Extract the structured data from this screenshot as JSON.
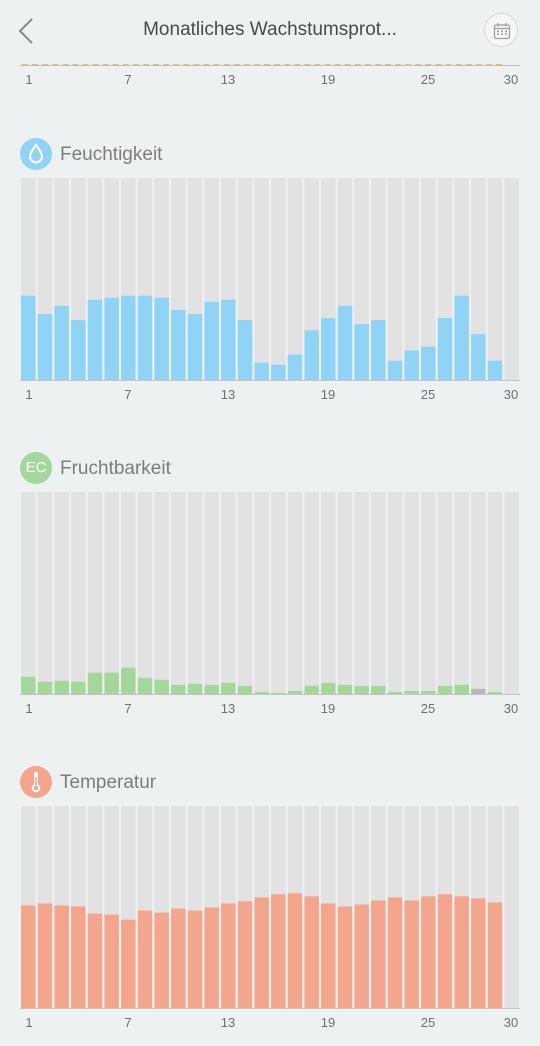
{
  "header": {
    "title": "Monatliches Wachstumsprot...",
    "back_icon": "chevron-left-icon",
    "calendar_icon": "calendar-icon"
  },
  "axis": {
    "ticks": [
      "1",
      "7",
      "13",
      "19",
      "25",
      "30"
    ]
  },
  "sections": [
    {
      "label": "Feuchtigkeit",
      "icon": "water-drop-icon",
      "icon_text": "",
      "color": "#8fd3f7"
    },
    {
      "label": "Fruchtbarkeit",
      "icon": "ec-icon",
      "icon_text": "EC",
      "color": "#a4d79a"
    },
    {
      "label": "Temperatur",
      "icon": "thermometer-icon",
      "icon_text": "",
      "color": "#f3a68c"
    }
  ],
  "chart_data": [
    {
      "type": "bar",
      "categories": [
        "1",
        "2",
        "3",
        "4",
        "5",
        "6",
        "7",
        "8",
        "9",
        "10",
        "11",
        "12",
        "13",
        "14",
        "15",
        "16",
        "17",
        "18",
        "19",
        "20",
        "21",
        "22",
        "23",
        "24",
        "25",
        "26",
        "27",
        "28",
        "29",
        "30"
      ],
      "values": [
        42,
        33,
        37,
        30,
        40,
        41,
        42,
        42,
        41,
        35,
        33,
        39,
        40,
        30,
        9,
        8,
        13,
        25,
        31,
        37,
        28,
        30,
        10,
        15,
        17,
        31,
        42,
        23,
        10,
        null
      ],
      "ylim": [
        0,
        100
      ],
      "bar_color": "#8fd3f7",
      "empty_color": "#e2e2e2"
    },
    {
      "type": "bar",
      "categories": [
        "1",
        "2",
        "3",
        "4",
        "5",
        "6",
        "7",
        "8",
        "9",
        "10",
        "11",
        "12",
        "13",
        "14",
        "15",
        "16",
        "17",
        "18",
        "19",
        "20",
        "21",
        "22",
        "23",
        "24",
        "25",
        "26",
        "27",
        "28",
        "29",
        "30"
      ],
      "values": [
        9,
        6.5,
        7,
        6.5,
        11,
        11,
        13.5,
        8.5,
        7.5,
        5,
        5.5,
        5,
        6,
        4.5,
        1.5,
        1,
        2,
        4.5,
        6,
        5,
        4.5,
        4.5,
        1.5,
        2,
        2,
        4.5,
        5,
        3,
        1.5,
        null
      ],
      "ylim": [
        0,
        100
      ],
      "bar_color": "#a4d79a",
      "highlight_index": 27,
      "highlight_color": "#b8b8b8",
      "empty_color": "#e2e2e2"
    },
    {
      "type": "bar",
      "categories": [
        "1",
        "2",
        "3",
        "4",
        "5",
        "6",
        "7",
        "8",
        "9",
        "10",
        "11",
        "12",
        "13",
        "14",
        "15",
        "16",
        "17",
        "18",
        "19",
        "20",
        "21",
        "22",
        "23",
        "24",
        "25",
        "26",
        "27",
        "28",
        "29",
        "30"
      ],
      "values": [
        51,
        52,
        51,
        50.5,
        47,
        46.5,
        44,
        48.5,
        47.5,
        49.5,
        48.5,
        50,
        52,
        53,
        55,
        56.5,
        57,
        55.5,
        52,
        50.5,
        51.5,
        53.5,
        55,
        53.5,
        55.5,
        56.5,
        55.5,
        54.5,
        52.5,
        null
      ],
      "ylim": [
        0,
        100
      ],
      "bar_color": "#f3a68c",
      "empty_color": "#e2e2e2"
    }
  ]
}
